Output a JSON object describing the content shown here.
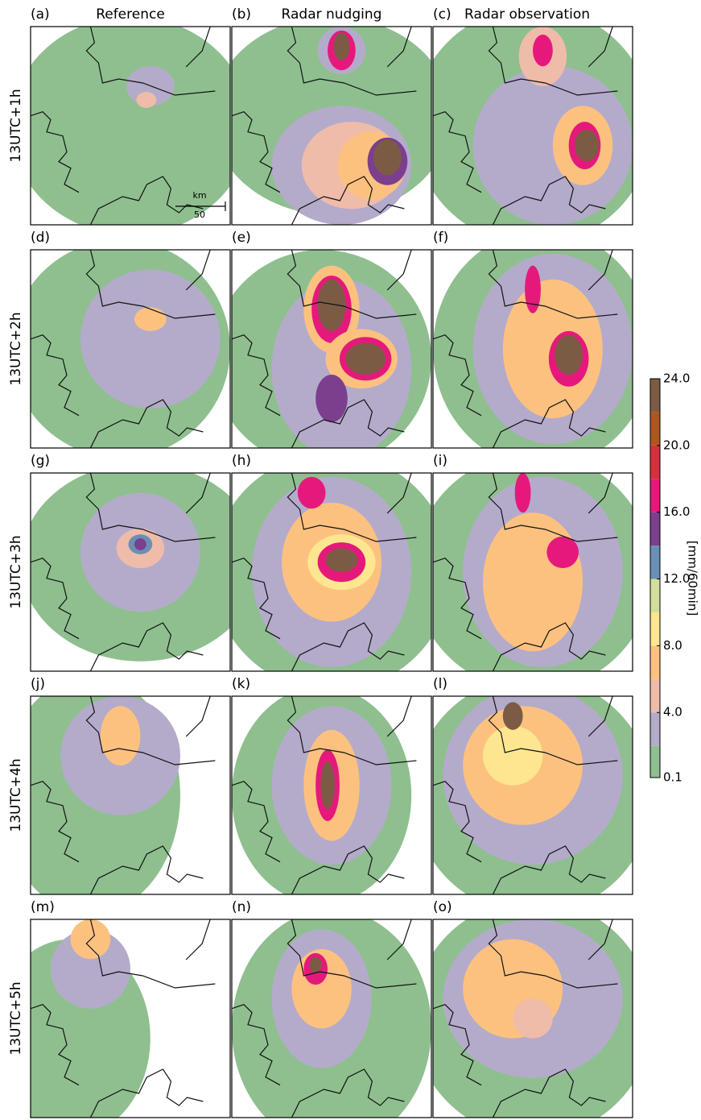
{
  "figure": {
    "columns": [
      "Reference",
      "Radar nudging",
      "Radar observation"
    ],
    "rows": [
      "13UTC+1h",
      "13UTC+2h",
      "13UTC+3h",
      "13UTC+4h",
      "13UTC+5h"
    ],
    "panel_labels": [
      "(a)",
      "(b)",
      "(c)",
      "(d)",
      "(e)",
      "(f)",
      "(g)",
      "(h)",
      "(i)",
      "(j)",
      "(k)",
      "(l)",
      "(m)",
      "(n)",
      "(o)"
    ],
    "scale_bar": {
      "unit": "km",
      "length": "50"
    }
  },
  "colorbar": {
    "label": "[mm/60min]",
    "levels": [
      0.1,
      2,
      4,
      6,
      8,
      10,
      12,
      14,
      16,
      18,
      20,
      22,
      24
    ],
    "colors": [
      "#8fbf8f",
      "#b4abcb",
      "#efbcaa",
      "#fdc17f",
      "#fde68f",
      "#d2df9c",
      "#6a8fb4",
      "#7b3f8e",
      "#e5197c",
      "#d5303d",
      "#b0561e",
      "#7c5b45"
    ],
    "ticks": [
      0.1,
      {
        "value": 4,
        "label": "4.0"
      },
      {
        "value": 8,
        "label": "8.0"
      },
      {
        "value": 12,
        "label": "12.0"
      },
      {
        "value": 16,
        "label": "16.0"
      },
      {
        "value": 20,
        "label": "20.0"
      },
      {
        "value": 24,
        "label": "24.0"
      }
    ]
  }
}
